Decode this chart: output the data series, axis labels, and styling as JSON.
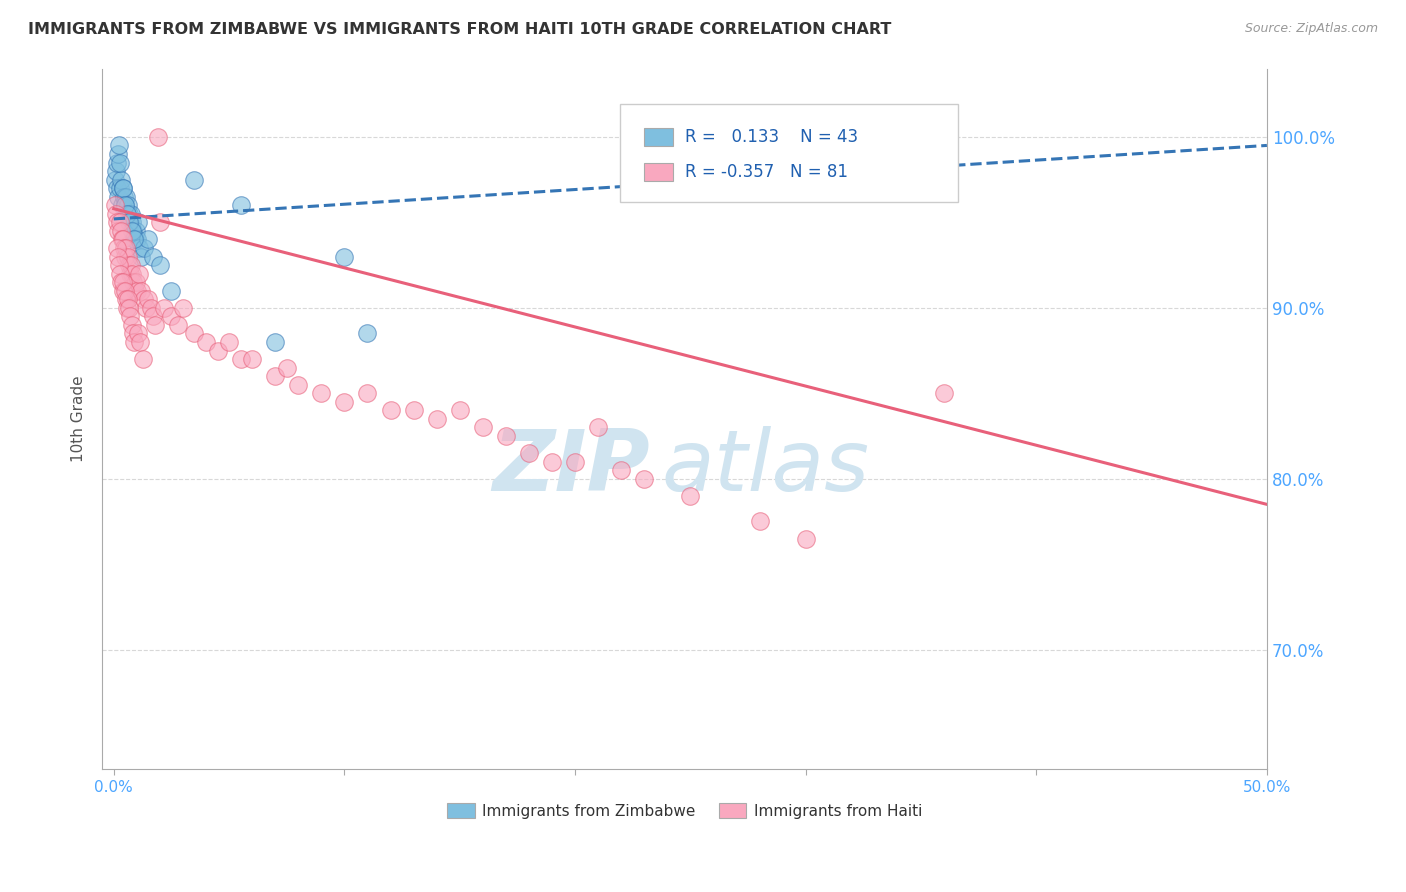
{
  "title": "IMMIGRANTS FROM ZIMBABWE VS IMMIGRANTS FROM HAITI 10TH GRADE CORRELATION CHART",
  "source": "Source: ZipAtlas.com",
  "ylabel": "10th Grade",
  "x_tick_labels_show": [
    "0.0%",
    "50.0%"
  ],
  "x_tick_values": [
    0.0,
    10.0,
    20.0,
    30.0,
    40.0,
    50.0
  ],
  "y_tick_labels": [
    "70.0%",
    "80.0%",
    "90.0%",
    "100.0%"
  ],
  "y_tick_values": [
    70.0,
    80.0,
    90.0,
    100.0
  ],
  "xlim": [
    -0.5,
    50.0
  ],
  "ylim": [
    63.0,
    104.0
  ],
  "legend_label_1": "Immigrants from Zimbabwe",
  "legend_label_2": "Immigrants from Haiti",
  "r1": 0.133,
  "n1": 43,
  "r2": -0.357,
  "n2": 81,
  "color_zimbabwe": "#7fbfdf",
  "color_haiti": "#f9a8bf",
  "color_zimbabwe_line": "#3575b5",
  "color_haiti_line": "#e8607a",
  "watermark_zip": "ZIP",
  "watermark_atlas": "atlas",
  "watermark_color": "#d0e4f0",
  "background_color": "#ffffff",
  "grid_color": "#d8d8d8",
  "right_tick_color": "#4da6ff",
  "zimbabwe_x": [
    0.05,
    0.1,
    0.15,
    0.2,
    0.25,
    0.3,
    0.35,
    0.4,
    0.45,
    0.5,
    0.55,
    0.6,
    0.65,
    0.7,
    0.75,
    0.8,
    0.85,
    0.9,
    0.95,
    1.0,
    1.05,
    1.1,
    1.2,
    1.3,
    1.5,
    1.7,
    2.0,
    2.5,
    3.5,
    5.5,
    7.0,
    10.0,
    0.12,
    0.18,
    0.22,
    0.28,
    0.38,
    0.48,
    0.58,
    0.68,
    0.78,
    0.88,
    11.0
  ],
  "zimbabwe_y": [
    97.5,
    98.0,
    97.0,
    96.5,
    97.0,
    97.5,
    96.0,
    97.0,
    96.5,
    96.0,
    96.5,
    96.0,
    95.5,
    95.0,
    95.5,
    95.0,
    94.5,
    94.0,
    94.5,
    94.0,
    95.0,
    93.5,
    93.0,
    93.5,
    94.0,
    93.0,
    92.5,
    91.0,
    97.5,
    96.0,
    88.0,
    93.0,
    98.5,
    99.0,
    99.5,
    98.5,
    97.0,
    96.0,
    95.5,
    95.0,
    94.5,
    94.0,
    88.5
  ],
  "haiti_x": [
    0.05,
    0.1,
    0.15,
    0.2,
    0.25,
    0.3,
    0.35,
    0.4,
    0.45,
    0.5,
    0.55,
    0.6,
    0.65,
    0.7,
    0.75,
    0.8,
    0.85,
    0.9,
    0.95,
    1.0,
    1.1,
    1.2,
    1.3,
    1.4,
    1.5,
    1.6,
    1.7,
    1.8,
    1.9,
    2.0,
    2.2,
    2.5,
    2.8,
    3.0,
    3.5,
    4.0,
    4.5,
    5.0,
    5.5,
    6.0,
    7.0,
    7.5,
    8.0,
    9.0,
    10.0,
    11.0,
    12.0,
    13.0,
    14.0,
    15.0,
    16.0,
    17.0,
    18.0,
    19.0,
    20.0,
    21.0,
    22.0,
    23.0,
    25.0,
    28.0,
    30.0,
    36.0,
    0.12,
    0.18,
    0.22,
    0.28,
    0.32,
    0.38,
    0.42,
    0.48,
    0.52,
    0.58,
    0.62,
    0.68,
    0.72,
    0.78,
    0.82,
    0.88,
    1.05,
    1.15,
    1.25
  ],
  "haiti_y": [
    96.0,
    95.5,
    95.0,
    94.5,
    95.0,
    94.5,
    94.0,
    94.0,
    93.5,
    93.0,
    93.5,
    93.0,
    92.5,
    92.0,
    92.5,
    92.0,
    91.5,
    91.0,
    91.5,
    91.0,
    92.0,
    91.0,
    90.5,
    90.0,
    90.5,
    90.0,
    89.5,
    89.0,
    100.0,
    95.0,
    90.0,
    89.5,
    89.0,
    90.0,
    88.5,
    88.0,
    87.5,
    88.0,
    87.0,
    87.0,
    86.0,
    86.5,
    85.5,
    85.0,
    84.5,
    85.0,
    84.0,
    84.0,
    83.5,
    84.0,
    83.0,
    82.5,
    81.5,
    81.0,
    81.0,
    83.0,
    80.5,
    80.0,
    79.0,
    77.5,
    76.5,
    85.0,
    93.5,
    93.0,
    92.5,
    92.0,
    91.5,
    91.0,
    91.5,
    91.0,
    90.5,
    90.0,
    90.5,
    90.0,
    89.5,
    89.0,
    88.5,
    88.0,
    88.5,
    88.0,
    87.0
  ],
  "zim_line_x0": 0.0,
  "zim_line_x1": 50.0,
  "zim_line_y0": 95.2,
  "zim_line_y1": 99.5,
  "haiti_line_x0": 0.0,
  "haiti_line_x1": 50.0,
  "haiti_line_y0": 95.8,
  "haiti_line_y1": 78.5
}
